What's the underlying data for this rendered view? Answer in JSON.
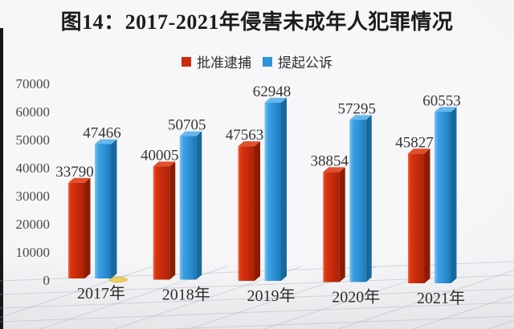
{
  "title": "图14：2017-2021年侵害未成年人犯罪情况",
  "legend": [
    {
      "label": "批准逮捕",
      "color": "#cf2b0b"
    },
    {
      "label": "提起公诉",
      "color": "#2e93d8"
    }
  ],
  "chart_data": {
    "type": "bar",
    "style": "3d-grouped-bars",
    "title": "图14：2017-2021年侵害未成年人犯罪情况",
    "categories": [
      "2017年",
      "2018年",
      "2019年",
      "2020年",
      "2021年"
    ],
    "series": [
      {
        "name": "批准逮捕",
        "color": "#cf2b0b",
        "values": [
          33790,
          40005,
          47563,
          38854,
          45827
        ]
      },
      {
        "name": "提起公诉",
        "color": "#2e93d8",
        "values": [
          47466,
          50705,
          62948,
          57295,
          60553
        ]
      }
    ],
    "xlabel": "",
    "ylabel": "",
    "ylim": [
      0,
      70000
    ],
    "yticks": [
      0,
      10000,
      20000,
      30000,
      40000,
      50000,
      60000,
      70000
    ],
    "grid": "3d-perspective-floor",
    "legend_position": "top",
    "data_labels": true
  },
  "decor": {
    "left_edge_strip_color": "#161616",
    "yellow_disc_color": "#ecd05e",
    "floor_line_color": "rgba(168,172,184,0.42)"
  }
}
